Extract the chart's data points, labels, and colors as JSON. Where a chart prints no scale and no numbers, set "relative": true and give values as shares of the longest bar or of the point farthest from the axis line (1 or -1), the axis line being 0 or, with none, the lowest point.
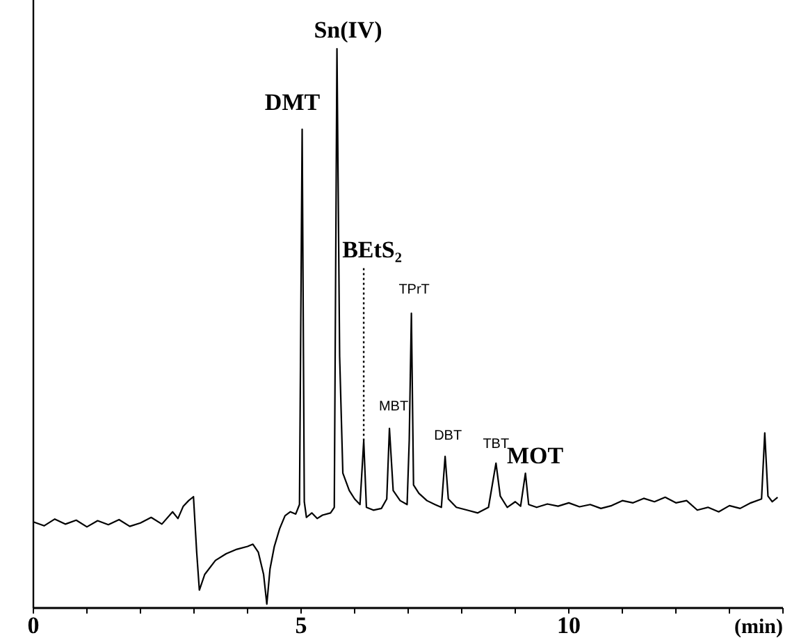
{
  "chart_data": {
    "type": "line",
    "relative": true,
    "xlabel": "(min)",
    "xlim": [
      0,
      14
    ],
    "xticks": [
      0,
      {
        "value": 1,
        "label": null
      },
      {
        "value": 2,
        "label": null
      },
      {
        "value": 3,
        "label": null
      },
      {
        "value": 4,
        "label": null
      },
      5,
      {
        "value": 6,
        "label": null
      },
      {
        "value": 7,
        "label": null
      },
      {
        "value": 8,
        "label": null
      },
      {
        "value": 9,
        "label": null
      },
      10,
      {
        "value": 11,
        "label": null
      },
      {
        "value": 12,
        "label": null
      },
      {
        "value": 13,
        "label": null
      },
      {
        "value": 14,
        "label": null
      }
    ],
    "x": [
      0,
      0.2,
      0.4,
      0.6,
      0.8,
      1.0,
      1.2,
      1.4,
      1.6,
      1.8,
      2.0,
      2.2,
      2.4,
      2.6,
      2.7,
      2.8,
      2.9,
      2.99,
      3.05,
      3.1,
      3.2,
      3.4,
      3.6,
      3.8,
      4.0,
      4.1,
      4.2,
      4.3,
      4.36,
      4.42,
      4.5,
      4.6,
      4.7,
      4.8,
      4.9,
      4.97,
      5.02,
      5.06,
      5.1,
      5.2,
      5.3,
      5.4,
      5.55,
      5.62,
      5.67,
      5.72,
      5.78,
      5.9,
      6.0,
      6.1,
      6.17,
      6.22,
      6.35,
      6.5,
      6.6,
      6.65,
      6.72,
      6.85,
      6.98,
      7.02,
      7.06,
      7.1,
      7.2,
      7.35,
      7.5,
      7.62,
      7.69,
      7.75,
      7.9,
      8.1,
      8.3,
      8.5,
      8.64,
      8.72,
      8.85,
      9.0,
      9.1,
      9.19,
      9.25,
      9.4,
      9.6,
      9.8,
      10.0,
      10.2,
      10.4,
      10.6,
      10.8,
      11.0,
      11.2,
      11.4,
      11.6,
      11.8,
      12.0,
      12.2,
      12.4,
      12.6,
      12.8,
      13.0,
      13.2,
      13.4,
      13.6,
      13.66,
      13.72,
      13.8,
      13.9
    ],
    "series": [
      {
        "color": "#000000",
        "values": [
          0.154,
          0.147,
          0.159,
          0.15,
          0.157,
          0.145,
          0.156,
          0.149,
          0.158,
          0.146,
          0.152,
          0.162,
          0.15,
          0.172,
          0.16,
          0.182,
          0.192,
          0.199,
          0.1,
          0.032,
          0.06,
          0.085,
          0.097,
          0.105,
          0.11,
          0.114,
          0.1,
          0.06,
          0.007,
          0.07,
          0.11,
          0.142,
          0.165,
          0.172,
          0.168,
          0.185,
          0.856,
          0.19,
          0.162,
          0.17,
          0.16,
          0.166,
          0.17,
          0.18,
          1.0,
          0.45,
          0.241,
          0.21,
          0.195,
          0.185,
          0.299,
          0.18,
          0.175,
          0.178,
          0.195,
          0.321,
          0.21,
          0.192,
          0.185,
          0.3,
          0.527,
          0.22,
          0.205,
          0.192,
          0.185,
          0.18,
          0.271,
          0.195,
          0.18,
          0.175,
          0.17,
          0.18,
          0.259,
          0.2,
          0.18,
          0.19,
          0.182,
          0.241,
          0.185,
          0.18,
          0.186,
          0.182,
          0.188,
          0.181,
          0.185,
          0.178,
          0.183,
          0.192,
          0.188,
          0.196,
          0.19,
          0.198,
          0.188,
          0.192,
          0.175,
          0.18,
          0.172,
          0.183,
          0.178,
          0.188,
          0.195,
          0.313,
          0.2,
          0.19,
          0.198
        ]
      }
    ],
    "annotations": [
      {
        "text": "DMT",
        "x": 5.02,
        "y": 0.856
      },
      {
        "text": "Sn(IV)",
        "x": 5.67,
        "y": 1.0
      },
      {
        "text": "BEtS₂",
        "x": 6.17,
        "y": 0.299
      },
      {
        "text": "MBT",
        "x": 6.65,
        "y": 0.321
      },
      {
        "text": "TPrT",
        "x": 7.06,
        "y": 0.527
      },
      {
        "text": "DBT",
        "x": 7.69,
        "y": 0.271
      },
      {
        "text": "TBT",
        "x": 8.64,
        "y": 0.259
      },
      {
        "text": "MOT",
        "x": 9.19,
        "y": 0.241
      }
    ]
  }
}
